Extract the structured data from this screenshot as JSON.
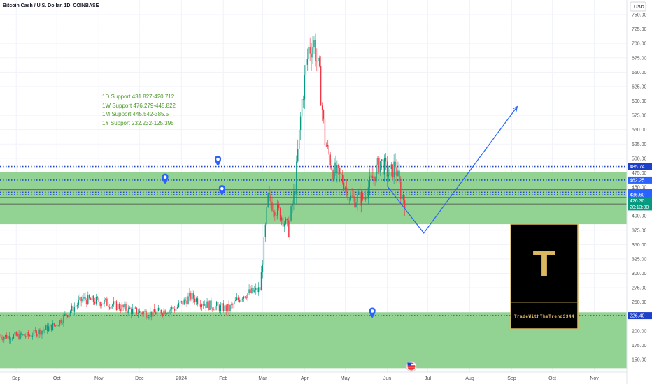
{
  "chart_data": {
    "type": "candlestick",
    "title": "Bitcoin Cash / U.S. Dollar, 1D, COINBASE",
    "currency": "USD",
    "annotations": [
      "1D Support 431.827-420.712",
      "1W Support 476.279-445.822",
      "1M Support 445.542-385.5",
      "1Y Support 232.232-125.395"
    ],
    "y_ticks": [
      "750.00",
      "725.00",
      "700.00",
      "675.00",
      "650.00",
      "625.00",
      "600.00",
      "575.00",
      "550.00",
      "525.00",
      "500.00",
      "475.00",
      "450.00",
      "425.00",
      "400.00",
      "375.00",
      "350.00",
      "325.00",
      "300.00",
      "275.00",
      "250.00",
      "225.00",
      "200.00",
      "175.00",
      "150.00"
    ],
    "y_tick_values": [
      750,
      725,
      700,
      675,
      650,
      625,
      600,
      575,
      550,
      525,
      500,
      475,
      450,
      425,
      400,
      375,
      350,
      325,
      300,
      275,
      250,
      225,
      200,
      175,
      150
    ],
    "ylim": [
      135,
      770
    ],
    "x_ticks": [
      "Sep",
      "Oct",
      "Nov",
      "Dec",
      "2024",
      "Feb",
      "Mar",
      "Apr",
      "May",
      "Jun",
      "Jul",
      "Aug",
      "Sep",
      "Oct",
      "Nov"
    ],
    "x_tick_dates": [
      "2023-09-01",
      "2023-10-01",
      "2023-11-01",
      "2023-12-01",
      "2024-01-01",
      "2024-02-01",
      "2024-03-01",
      "2024-04-01",
      "2024-05-01",
      "2024-06-01",
      "2024-07-01",
      "2024-08-01",
      "2024-09-01",
      "2024-10-01",
      "2024-11-01"
    ],
    "xlim": [
      "2023-08-20",
      "2024-11-25"
    ],
    "price_tags": [
      {
        "label": "485.74",
        "value": 485.74,
        "color": "#1e3fc8"
      },
      {
        "label": "462.25",
        "value": 462.25,
        "color": "#2962ff"
      },
      {
        "label": "441.03",
        "value": 441.03,
        "color": "#2962ff"
      },
      {
        "label": "436.60",
        "value": 436.6,
        "color": "#2962ff"
      },
      {
        "label": "426.30",
        "value": 426.3,
        "color": "#089981"
      },
      {
        "label": "20:13:00",
        "value": 415.5,
        "color": "#089981"
      },
      {
        "label": "226.40",
        "value": 226.4,
        "color": "#1e3fc8"
      }
    ],
    "zones": [
      {
        "from": 385.5,
        "to": 476.279,
        "color": "#92d292"
      },
      {
        "from": 135,
        "to": 232.232,
        "color": "#92d292"
      }
    ],
    "levels": [
      {
        "value": 485.74,
        "color": "#2346c8",
        "style": "dotted"
      },
      {
        "value": 462.25,
        "color": "#2346c8",
        "style": "dotted"
      },
      {
        "value": 445.54,
        "color": "#9c27b0",
        "style": "solid"
      },
      {
        "value": 441.03,
        "color": "#2346c8",
        "style": "dotted"
      },
      {
        "value": 436.6,
        "color": "#2346c8",
        "style": "dotted"
      },
      {
        "value": 431.83,
        "color": "#444444",
        "style": "solid"
      },
      {
        "value": 420.71,
        "color": "#444444",
        "style": "solid"
      },
      {
        "value": 226.4,
        "color": "#2346c8",
        "style": "dotted"
      }
    ],
    "projection": [
      {
        "date": "2024-06-01",
        "price": 452
      },
      {
        "date": "2024-06-28",
        "price": 370
      },
      {
        "date": "2024-09-05",
        "price": 590
      }
    ],
    "markers": [
      {
        "date": "2023-12-20",
        "price": 465
      },
      {
        "date": "2024-01-28",
        "price": 496
      },
      {
        "date": "2024-01-31",
        "price": 445
      },
      {
        "date": "2024-05-21",
        "price": 232
      }
    ],
    "close_path": [
      {
        "date": "2023-08-20",
        "price": 190
      },
      {
        "date": "2023-09-10",
        "price": 192
      },
      {
        "date": "2023-09-30",
        "price": 210
      },
      {
        "date": "2023-10-20",
        "price": 255
      },
      {
        "date": "2023-11-05",
        "price": 250
      },
      {
        "date": "2023-11-25",
        "price": 235
      },
      {
        "date": "2023-12-10",
        "price": 230
      },
      {
        "date": "2023-12-28",
        "price": 240
      },
      {
        "date": "2024-01-08",
        "price": 260
      },
      {
        "date": "2024-01-20",
        "price": 245
      },
      {
        "date": "2024-02-05",
        "price": 238
      },
      {
        "date": "2024-02-15",
        "price": 262
      },
      {
        "date": "2024-02-28",
        "price": 272
      },
      {
        "date": "2024-03-05",
        "price": 430
      },
      {
        "date": "2024-03-15",
        "price": 400
      },
      {
        "date": "2024-03-20",
        "price": 375
      },
      {
        "date": "2024-03-25",
        "price": 450
      },
      {
        "date": "2024-03-30",
        "price": 600
      },
      {
        "date": "2024-04-04",
        "price": 690
      },
      {
        "date": "2024-04-08",
        "price": 700
      },
      {
        "date": "2024-04-12",
        "price": 640
      },
      {
        "date": "2024-04-16",
        "price": 530
      },
      {
        "date": "2024-04-22",
        "price": 480
      },
      {
        "date": "2024-04-30",
        "price": 460
      },
      {
        "date": "2024-05-05",
        "price": 430
      },
      {
        "date": "2024-05-14",
        "price": 430
      },
      {
        "date": "2024-05-20",
        "price": 460
      },
      {
        "date": "2024-05-27",
        "price": 495
      },
      {
        "date": "2024-06-03",
        "price": 470
      },
      {
        "date": "2024-06-07",
        "price": 490
      },
      {
        "date": "2024-06-11",
        "price": 440
      },
      {
        "date": "2024-06-14",
        "price": 426.3
      }
    ]
  }
}
